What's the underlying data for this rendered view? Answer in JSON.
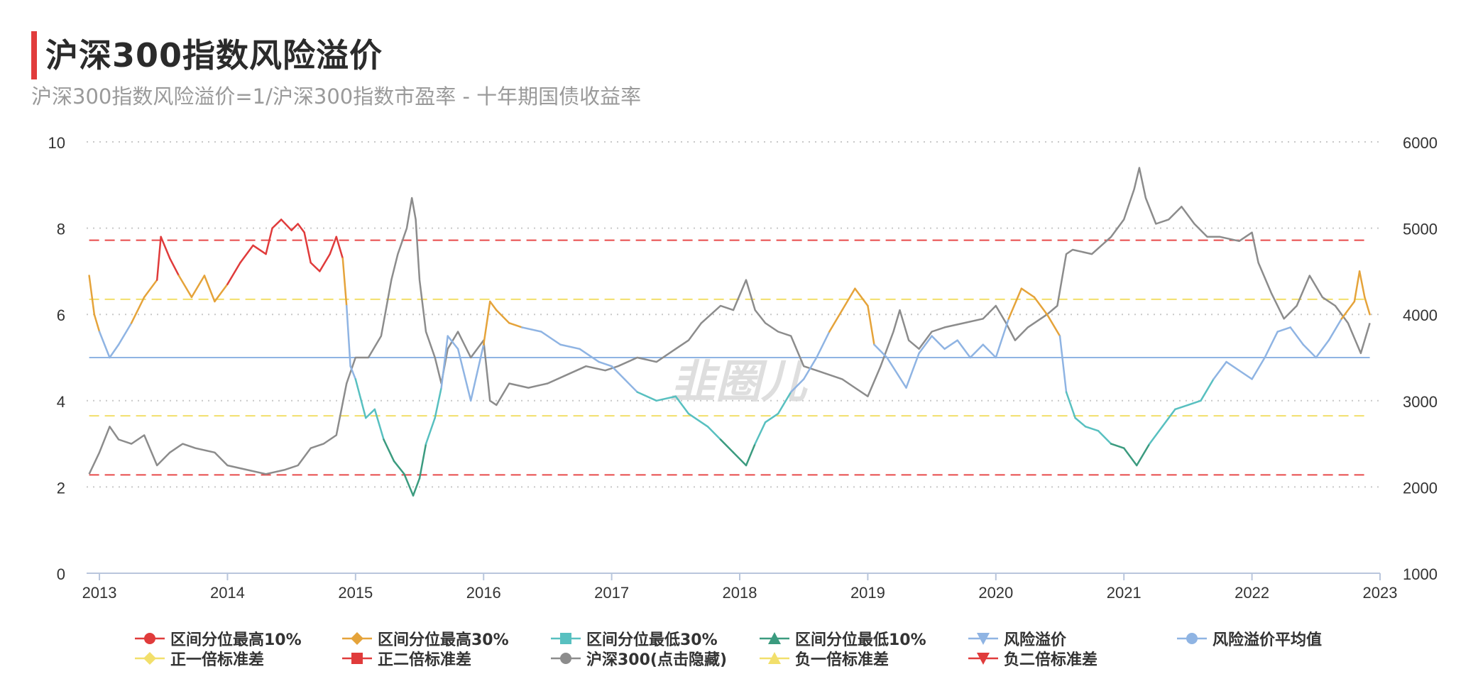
{
  "header": {
    "title": "沪深300指数风险溢价",
    "subtitle": "沪深300指数风险溢价=1/沪深300指数市盈率 - 十年期国债收益率"
  },
  "watermark": "韭圈儿",
  "chart_data": {
    "type": "line",
    "title": "沪深300指数风险溢价",
    "subtitle": "沪深300指数风险溢价=1/沪深300指数市盈率 - 十年期国债收益率",
    "x_ticks": [
      "2013",
      "2014",
      "2015",
      "2016",
      "2017",
      "2018",
      "2019",
      "2020",
      "2021",
      "2022",
      "2023"
    ],
    "x_range": [
      2012.9,
      2023.0
    ],
    "y_left": {
      "ticks": [
        "0",
        "2",
        "4",
        "6",
        "8",
        "10"
      ],
      "range": [
        0,
        10
      ]
    },
    "y_right": {
      "ticks": [
        "1000",
        "2000",
        "3000",
        "4000",
        "5000",
        "6000"
      ],
      "range": [
        1000,
        6000
      ]
    },
    "grid": true,
    "legend_position": "bottom",
    "reference_lines": [
      {
        "name": "正二倍标准差",
        "value": 7.72,
        "color": "#e84a4a",
        "style": "dashed"
      },
      {
        "name": "正一倍标准差",
        "value": 6.35,
        "color": "#f2df6b",
        "style": "dashed"
      },
      {
        "name": "风险溢价平均值",
        "value": 5.0,
        "color": "#8fb4e3",
        "style": "solid"
      },
      {
        "name": "负一倍标准差",
        "value": 3.65,
        "color": "#f2df6b",
        "style": "dashed"
      },
      {
        "name": "负二倍标准差",
        "value": 2.28,
        "color": "#e84a4a",
        "style": "dashed"
      }
    ],
    "risk_premium": {
      "name": "风险溢价",
      "axis": "left",
      "points": [
        [
          2012.92,
          6.9
        ],
        [
          2012.96,
          6.0
        ],
        [
          2013.0,
          5.6
        ],
        [
          2013.08,
          5.0
        ],
        [
          2013.15,
          5.3
        ],
        [
          2013.25,
          5.8
        ],
        [
          2013.35,
          6.4
        ],
        [
          2013.45,
          6.8
        ],
        [
          2013.48,
          7.8
        ],
        [
          2013.55,
          7.3
        ],
        [
          2013.62,
          6.9
        ],
        [
          2013.72,
          6.4
        ],
        [
          2013.82,
          6.9
        ],
        [
          2013.9,
          6.3
        ],
        [
          2014.0,
          6.7
        ],
        [
          2014.1,
          7.2
        ],
        [
          2014.2,
          7.6
        ],
        [
          2014.3,
          7.4
        ],
        [
          2014.35,
          8.0
        ],
        [
          2014.42,
          8.2
        ],
        [
          2014.5,
          7.95
        ],
        [
          2014.55,
          8.1
        ],
        [
          2014.6,
          7.9
        ],
        [
          2014.65,
          7.2
        ],
        [
          2014.72,
          7.0
        ],
        [
          2014.8,
          7.4
        ],
        [
          2014.85,
          7.8
        ],
        [
          2014.9,
          7.3
        ],
        [
          2014.93,
          6.2
        ],
        [
          2014.96,
          4.8
        ],
        [
          2015.0,
          4.5
        ],
        [
          2015.08,
          3.6
        ],
        [
          2015.15,
          3.8
        ],
        [
          2015.22,
          3.1
        ],
        [
          2015.3,
          2.6
        ],
        [
          2015.38,
          2.3
        ],
        [
          2015.45,
          1.8
        ],
        [
          2015.5,
          2.2
        ],
        [
          2015.55,
          3.0
        ],
        [
          2015.62,
          3.6
        ],
        [
          2015.67,
          4.3
        ],
        [
          2015.72,
          5.5
        ],
        [
          2015.8,
          5.2
        ],
        [
          2015.9,
          4.0
        ],
        [
          2016.0,
          5.3
        ],
        [
          2016.05,
          6.3
        ],
        [
          2016.1,
          6.1
        ],
        [
          2016.2,
          5.8
        ],
        [
          2016.3,
          5.7
        ],
        [
          2016.45,
          5.6
        ],
        [
          2016.6,
          5.3
        ],
        [
          2016.75,
          5.2
        ],
        [
          2016.9,
          4.9
        ],
        [
          2017.0,
          4.8
        ],
        [
          2017.1,
          4.5
        ],
        [
          2017.2,
          4.2
        ],
        [
          2017.35,
          4.0
        ],
        [
          2017.5,
          4.1
        ],
        [
          2017.6,
          3.7
        ],
        [
          2017.75,
          3.4
        ],
        [
          2017.85,
          3.1
        ],
        [
          2017.95,
          2.8
        ],
        [
          2018.05,
          2.5
        ],
        [
          2018.12,
          3.0
        ],
        [
          2018.2,
          3.5
        ],
        [
          2018.3,
          3.7
        ],
        [
          2018.4,
          4.2
        ],
        [
          2018.5,
          4.5
        ],
        [
          2018.6,
          5.0
        ],
        [
          2018.7,
          5.6
        ],
        [
          2018.8,
          6.1
        ],
        [
          2018.9,
          6.6
        ],
        [
          2019.0,
          6.2
        ],
        [
          2019.05,
          5.3
        ],
        [
          2019.15,
          5.0
        ],
        [
          2019.3,
          4.3
        ],
        [
          2019.4,
          5.1
        ],
        [
          2019.5,
          5.5
        ],
        [
          2019.6,
          5.2
        ],
        [
          2019.7,
          5.4
        ],
        [
          2019.8,
          5.0
        ],
        [
          2019.9,
          5.3
        ],
        [
          2020.0,
          5.0
        ],
        [
          2020.1,
          5.9
        ],
        [
          2020.2,
          6.6
        ],
        [
          2020.3,
          6.4
        ],
        [
          2020.4,
          6.0
        ],
        [
          2020.5,
          5.5
        ],
        [
          2020.55,
          4.2
        ],
        [
          2020.62,
          3.6
        ],
        [
          2020.7,
          3.4
        ],
        [
          2020.8,
          3.3
        ],
        [
          2020.9,
          3.0
        ],
        [
          2021.0,
          2.9
        ],
        [
          2021.1,
          2.5
        ],
        [
          2021.2,
          3.0
        ],
        [
          2021.3,
          3.4
        ],
        [
          2021.4,
          3.8
        ],
        [
          2021.5,
          3.9
        ],
        [
          2021.6,
          4.0
        ],
        [
          2021.7,
          4.5
        ],
        [
          2021.8,
          4.9
        ],
        [
          2021.9,
          4.7
        ],
        [
          2022.0,
          4.5
        ],
        [
          2022.1,
          5.0
        ],
        [
          2022.2,
          5.6
        ],
        [
          2022.3,
          5.7
        ],
        [
          2022.4,
          5.3
        ],
        [
          2022.5,
          5.0
        ],
        [
          2022.6,
          5.4
        ],
        [
          2022.7,
          5.9
        ],
        [
          2022.8,
          6.3
        ],
        [
          2022.84,
          7.0
        ],
        [
          2022.88,
          6.4
        ],
        [
          2022.92,
          6.0
        ]
      ]
    },
    "csi300": {
      "name": "沪深300(点击隐藏)",
      "axis": "right",
      "color": "#8c8c8c",
      "points": [
        [
          2012.92,
          2150
        ],
        [
          2013.0,
          2400
        ],
        [
          2013.08,
          2700
        ],
        [
          2013.15,
          2550
        ],
        [
          2013.25,
          2500
        ],
        [
          2013.35,
          2600
        ],
        [
          2013.45,
          2250
        ],
        [
          2013.55,
          2400
        ],
        [
          2013.65,
          2500
        ],
        [
          2013.75,
          2450
        ],
        [
          2013.9,
          2400
        ],
        [
          2014.0,
          2250
        ],
        [
          2014.15,
          2200
        ],
        [
          2014.3,
          2150
        ],
        [
          2014.45,
          2200
        ],
        [
          2014.55,
          2250
        ],
        [
          2014.65,
          2450
        ],
        [
          2014.75,
          2500
        ],
        [
          2014.85,
          2600
        ],
        [
          2014.93,
          3200
        ],
        [
          2015.0,
          3500
        ],
        [
          2015.1,
          3500
        ],
        [
          2015.2,
          3750
        ],
        [
          2015.28,
          4400
        ],
        [
          2015.33,
          4700
        ],
        [
          2015.4,
          5000
        ],
        [
          2015.44,
          5350
        ],
        [
          2015.47,
          5100
        ],
        [
          2015.5,
          4400
        ],
        [
          2015.55,
          3800
        ],
        [
          2015.62,
          3500
        ],
        [
          2015.67,
          3200
        ],
        [
          2015.72,
          3600
        ],
        [
          2015.8,
          3800
        ],
        [
          2015.9,
          3500
        ],
        [
          2016.0,
          3700
        ],
        [
          2016.05,
          3000
        ],
        [
          2016.1,
          2950
        ],
        [
          2016.2,
          3200
        ],
        [
          2016.35,
          3150
        ],
        [
          2016.5,
          3200
        ],
        [
          2016.65,
          3300
        ],
        [
          2016.8,
          3400
        ],
        [
          2016.95,
          3350
        ],
        [
          2017.05,
          3400
        ],
        [
          2017.2,
          3500
        ],
        [
          2017.35,
          3450
        ],
        [
          2017.5,
          3600
        ],
        [
          2017.6,
          3700
        ],
        [
          2017.7,
          3900
        ],
        [
          2017.85,
          4100
        ],
        [
          2017.95,
          4050
        ],
        [
          2018.05,
          4400
        ],
        [
          2018.12,
          4050
        ],
        [
          2018.2,
          3900
        ],
        [
          2018.3,
          3800
        ],
        [
          2018.4,
          3750
        ],
        [
          2018.5,
          3400
        ],
        [
          2018.6,
          3350
        ],
        [
          2018.7,
          3300
        ],
        [
          2018.8,
          3250
        ],
        [
          2018.9,
          3150
        ],
        [
          2019.0,
          3050
        ],
        [
          2019.1,
          3400
        ],
        [
          2019.2,
          3800
        ],
        [
          2019.25,
          4050
        ],
        [
          2019.32,
          3700
        ],
        [
          2019.4,
          3600
        ],
        [
          2019.5,
          3800
        ],
        [
          2019.6,
          3850
        ],
        [
          2019.75,
          3900
        ],
        [
          2019.9,
          3950
        ],
        [
          2020.0,
          4100
        ],
        [
          2020.08,
          3900
        ],
        [
          2020.15,
          3700
        ],
        [
          2020.25,
          3850
        ],
        [
          2020.4,
          4000
        ],
        [
          2020.48,
          4100
        ],
        [
          2020.55,
          4700
        ],
        [
          2020.6,
          4750
        ],
        [
          2020.75,
          4700
        ],
        [
          2020.9,
          4900
        ],
        [
          2021.0,
          5100
        ],
        [
          2021.08,
          5450
        ],
        [
          2021.12,
          5700
        ],
        [
          2021.17,
          5350
        ],
        [
          2021.25,
          5050
        ],
        [
          2021.35,
          5100
        ],
        [
          2021.45,
          5250
        ],
        [
          2021.55,
          5050
        ],
        [
          2021.65,
          4900
        ],
        [
          2021.75,
          4900
        ],
        [
          2021.9,
          4850
        ],
        [
          2022.0,
          4950
        ],
        [
          2022.05,
          4600
        ],
        [
          2022.15,
          4250
        ],
        [
          2022.25,
          3950
        ],
        [
          2022.35,
          4100
        ],
        [
          2022.45,
          4450
        ],
        [
          2022.55,
          4200
        ],
        [
          2022.65,
          4100
        ],
        [
          2022.75,
          3900
        ],
        [
          2022.85,
          3550
        ],
        [
          2022.92,
          3900
        ]
      ]
    },
    "series": [
      {
        "name": "区间分位最高10%",
        "color": "#e03b3b",
        "marker": "circle"
      },
      {
        "name": "区间分位最高30%",
        "color": "#e5a33a",
        "marker": "diamond"
      },
      {
        "name": "区间分位最低30%",
        "color": "#58c0c0",
        "marker": "square"
      },
      {
        "name": "区间分位最低10%",
        "color": "#3b9b7f",
        "marker": "triangle-up"
      },
      {
        "name": "风险溢价",
        "color": "#8fb4e3",
        "marker": "triangle-down"
      },
      {
        "name": "风险溢价平均值",
        "color": "#8fb4e3",
        "marker": "circle"
      },
      {
        "name": "正一倍标准差",
        "color": "#f2df6b",
        "marker": "diamond"
      },
      {
        "name": "正二倍标准差",
        "color": "#e03b3b",
        "marker": "square"
      },
      {
        "name": "沪深300(点击隐藏)",
        "color": "#8c8c8c",
        "marker": "circle"
      },
      {
        "name": "负一倍标准差",
        "color": "#f2df6b",
        "marker": "triangle-up"
      },
      {
        "name": "负二倍标准差",
        "color": "#e03b3b",
        "marker": "triangle-down"
      }
    ],
    "quantile_thresholds": {
      "top10": 6.95,
      "top30": 5.75,
      "low30": 4.25,
      "low10": 3.0
    }
  }
}
